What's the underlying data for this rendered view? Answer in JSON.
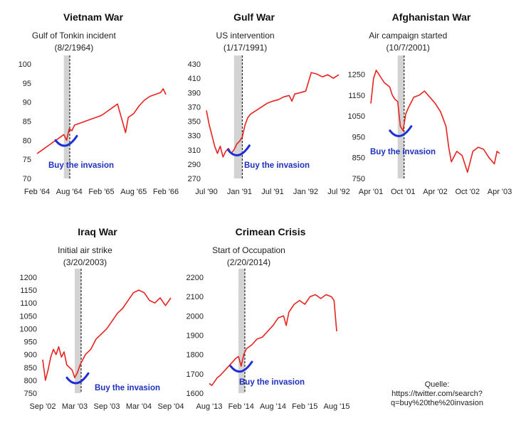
{
  "source": {
    "label": "Quelle:",
    "url_line1": "https://twitter.com/search?",
    "url_line2": "q=buy%20the%20invasion"
  },
  "colors": {
    "series": "#e8221e",
    "annotation": "#1f2fd8",
    "shade": "#d3d3d3"
  },
  "chart_data": [
    {
      "type": "line",
      "title": "Vietnam War",
      "event": {
        "label": "Gulf of Tonkin incident",
        "date": "(8/2/1964)",
        "x": 6.1
      },
      "shade_range": [
        5.0,
        6.1
      ],
      "annotation": "Buy the invasion",
      "ylim": [
        70,
        100
      ],
      "yticks": [
        70,
        75,
        80,
        85,
        90,
        95,
        100
      ],
      "xlim": [
        0,
        24
      ],
      "xticks": [
        {
          "x": 0,
          "label": "Feb '64"
        },
        {
          "x": 6,
          "label": "Aug '64"
        },
        {
          "x": 12,
          "label": "Feb '65"
        },
        {
          "x": 18,
          "label": "Aug '65"
        },
        {
          "x": 24,
          "label": "Feb '66"
        }
      ],
      "series": [
        {
          "x": [
            0,
            1,
            2,
            3,
            4,
            5,
            5.5,
            6,
            6.5,
            7,
            8,
            9,
            10,
            11,
            12,
            13,
            14,
            15,
            15.5,
            16,
            16.5,
            17,
            18,
            19,
            20,
            21,
            22,
            23,
            23.5,
            24
          ],
          "values": [
            76.5,
            77.5,
            78.5,
            79.5,
            80.5,
            81.5,
            80.0,
            83.0,
            82.5,
            84.0,
            84.5,
            85.0,
            85.5,
            86.0,
            86.5,
            87.5,
            88.5,
            89.5,
            87.0,
            84.5,
            82.0,
            86.0,
            87.0,
            89.0,
            90.5,
            91.5,
            92.0,
            92.5,
            93.5,
            92.0
          ]
        }
      ]
    },
    {
      "type": "line",
      "title": "Gulf War",
      "event": {
        "label": "US intervention",
        "date": "(1/17/1991)",
        "x": 6.5
      },
      "shade_range": [
        5.0,
        6.5
      ],
      "annotation": "Buy the invasion",
      "ylim": [
        270,
        430
      ],
      "yticks": [
        270,
        290,
        310,
        330,
        350,
        370,
        390,
        410,
        430
      ],
      "xlim": [
        0,
        24
      ],
      "xticks": [
        {
          "x": 0,
          "label": "Jul '90"
        },
        {
          "x": 6,
          "label": "Jan '91"
        },
        {
          "x": 12,
          "label": "Jul '91"
        },
        {
          "x": 18,
          "label": "Jan '92"
        },
        {
          "x": 24,
          "label": "Jul '92"
        }
      ],
      "series": [
        {
          "x": [
            0,
            0.5,
            1,
            1.5,
            2,
            2.5,
            3,
            3.5,
            4,
            4.5,
            5,
            5.5,
            6,
            6.5,
            7,
            7.5,
            8,
            9,
            10,
            11,
            12,
            13,
            14,
            15,
            15.5,
            16,
            17,
            18,
            19,
            20,
            21,
            22,
            23,
            24
          ],
          "values": [
            365,
            345,
            330,
            315,
            305,
            315,
            300,
            308,
            312,
            305,
            310,
            318,
            322,
            328,
            345,
            355,
            360,
            365,
            370,
            375,
            378,
            380,
            384,
            386,
            378,
            388,
            390,
            392,
            418,
            416,
            412,
            415,
            410,
            415
          ]
        }
      ]
    },
    {
      "type": "line",
      "title": "Afghanistan War",
      "event": {
        "label": "Air campaign started",
        "date": "(10/7/2001)",
        "x": 6.2
      },
      "shade_range": [
        5.0,
        6.2
      ],
      "annotation": "Buy the invasion",
      "ylim": [
        750,
        1300
      ],
      "yticks": [
        750,
        850,
        950,
        1050,
        1150,
        1250
      ],
      "xlim": [
        0,
        24
      ],
      "xticks": [
        {
          "x": 0,
          "label": "Apr '01"
        },
        {
          "x": 6,
          "label": "Oct '01"
        },
        {
          "x": 12,
          "label": "Apr '02"
        },
        {
          "x": 18,
          "label": "Oct '02"
        },
        {
          "x": 24,
          "label": "Apr '03"
        }
      ],
      "series": [
        {
          "x": [
            0,
            0.5,
            1,
            1.5,
            2,
            2.5,
            3,
            3.5,
            4,
            4.5,
            5,
            5.5,
            6,
            6.5,
            7,
            8,
            9,
            10,
            11,
            12,
            13,
            14,
            14.5,
            15,
            16,
            17,
            18,
            19,
            20,
            21,
            22,
            23,
            23.5,
            24
          ],
          "values": [
            1110,
            1230,
            1270,
            1250,
            1230,
            1210,
            1200,
            1190,
            1150,
            1130,
            1120,
            1000,
            980,
            1060,
            1090,
            1140,
            1150,
            1170,
            1140,
            1110,
            1070,
            1000,
            900,
            830,
            880,
            860,
            780,
            880,
            900,
            890,
            850,
            820,
            880,
            870
          ]
        }
      ]
    },
    {
      "type": "line",
      "title": "Iraq War",
      "event": {
        "label": "Initial air strike",
        "date": "(3/20/2003)",
        "x": 7.2
      },
      "shade_range": [
        6.0,
        7.2
      ],
      "annotation": "Buy the invasion",
      "ylim": [
        750,
        1200
      ],
      "yticks": [
        750,
        800,
        850,
        900,
        950,
        1000,
        1050,
        1100,
        1150,
        1200
      ],
      "xlim": [
        0,
        24
      ],
      "xticks": [
        {
          "x": 0,
          "label": "Sep '02"
        },
        {
          "x": 6,
          "label": "Mar '03"
        },
        {
          "x": 12,
          "label": "Sep '03"
        },
        {
          "x": 18,
          "label": "Mar '04"
        },
        {
          "x": 24,
          "label": "Sep '04"
        }
      ],
      "series": [
        {
          "x": [
            0,
            0.5,
            1,
            1.5,
            2,
            2.5,
            3,
            3.5,
            4,
            4.5,
            5,
            5.5,
            6,
            6.5,
            7,
            7.5,
            8,
            9,
            10,
            11,
            12,
            13,
            14,
            15,
            16,
            17,
            18,
            19,
            20,
            21,
            22,
            23,
            24
          ],
          "values": [
            880,
            800,
            840,
            890,
            920,
            900,
            930,
            890,
            910,
            860,
            850,
            840,
            810,
            830,
            860,
            880,
            900,
            920,
            960,
            980,
            1000,
            1030,
            1060,
            1080,
            1110,
            1140,
            1150,
            1140,
            1110,
            1100,
            1120,
            1090,
            1120
          ]
        }
      ]
    },
    {
      "type": "line",
      "title": "Crimean Crisis",
      "event": {
        "label": "Start of Occupation",
        "date": "(2/20/2014)",
        "x": 6.7
      },
      "shade_range": [
        5.5,
        6.7
      ],
      "annotation": "Buy the invasion",
      "ylim": [
        1600,
        2200
      ],
      "yticks": [
        1600,
        1700,
        1800,
        1900,
        2000,
        2100,
        2200
      ],
      "xlim": [
        0,
        24
      ],
      "xticks": [
        {
          "x": 0,
          "label": "Aug '13"
        },
        {
          "x": 6,
          "label": "Feb '14"
        },
        {
          "x": 12,
          "label": "Aug '14"
        },
        {
          "x": 18,
          "label": "Feb '15"
        },
        {
          "x": 24,
          "label": "Aug '15"
        }
      ],
      "series": [
        {
          "x": [
            0,
            0.5,
            1,
            1.5,
            2,
            3,
            4,
            5,
            5.5,
            6,
            6.5,
            7,
            8,
            9,
            10,
            11,
            12,
            13,
            14,
            14.5,
            15,
            16,
            17,
            18,
            19,
            20,
            21,
            22,
            23,
            23.5,
            24
          ],
          "values": [
            1650,
            1640,
            1660,
            1680,
            1690,
            1720,
            1750,
            1780,
            1790,
            1740,
            1800,
            1830,
            1850,
            1880,
            1890,
            1920,
            1950,
            1990,
            2000,
            1950,
            2020,
            2060,
            2080,
            2060,
            2100,
            2110,
            2090,
            2110,
            2100,
            2080,
            1920
          ]
        }
      ]
    }
  ]
}
